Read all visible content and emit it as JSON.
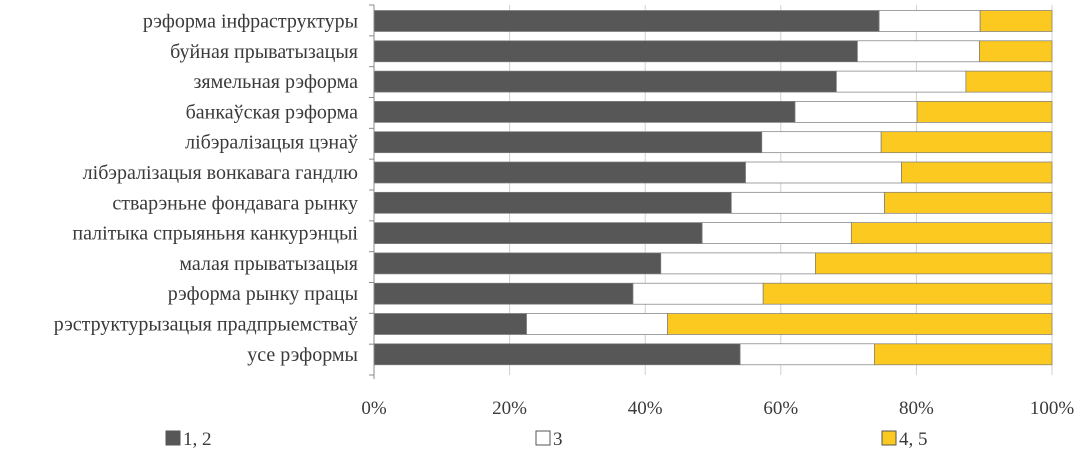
{
  "chart_data": {
    "type": "bar",
    "orientation": "horizontal",
    "stacked": "percent",
    "categories": [
      "рэформа інфраструктуры",
      "буйная прыватызацыя",
      "зямельная рэформа",
      "банкаўская рэформа",
      "лібэралізацыя цэнаў",
      "лібэралізацыя вонкавага гандлю",
      "стварэньне фондавага рынку",
      "палітыка спрыяньня канкурэнцыі",
      "малая прыватызацыя",
      "рэформа рынку працы",
      "рэструктурызацыя прадпрыемстваў",
      "усе рэформы"
    ],
    "series": [
      {
        "name": "1, 2",
        "color": "#575757",
        "values": [
          74.5,
          71.3,
          68.2,
          62.1,
          57.2,
          54.8,
          52.7,
          48.4,
          42.3,
          38.2,
          22.5,
          54.0
        ]
      },
      {
        "name": "3",
        "color": "#ffffff",
        "values": [
          14.9,
          18.0,
          19.1,
          18.0,
          17.6,
          23.0,
          22.6,
          22.0,
          22.8,
          19.2,
          20.8,
          19.8
        ]
      },
      {
        "name": "4, 5",
        "color": "#fcc920",
        "values": [
          10.6,
          10.7,
          12.7,
          19.9,
          25.2,
          22.2,
          24.7,
          29.6,
          34.9,
          42.6,
          56.7,
          26.2
        ]
      }
    ],
    "xticks": [
      "0%",
      "20%",
      "40%",
      "60%",
      "80%",
      "100%"
    ],
    "xlim": [
      0,
      100
    ],
    "grid": "vertical",
    "legend": "bottom"
  }
}
